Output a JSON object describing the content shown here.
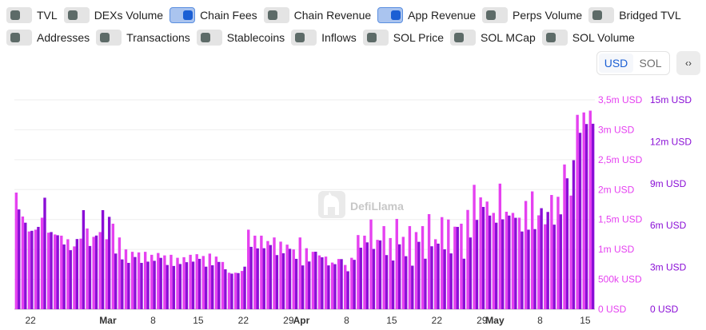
{
  "toggles": [
    [
      {
        "label": "TVL",
        "on": false
      },
      {
        "label": "DEXs Volume",
        "on": false
      },
      {
        "label": "Chain Fees",
        "on": true
      },
      {
        "label": "Chain Revenue",
        "on": false
      },
      {
        "label": "App Revenue",
        "on": true
      },
      {
        "label": "Perps Volume",
        "on": false
      },
      {
        "label": "Bridged TVL",
        "on": false
      }
    ],
    [
      {
        "label": "Addresses",
        "on": false
      },
      {
        "label": "Transactions",
        "on": false
      },
      {
        "label": "Stablecoins",
        "on": false
      },
      {
        "label": "Inflows",
        "on": false
      },
      {
        "label": "SOL Price",
        "on": false
      },
      {
        "label": "SOL MCap",
        "on": false
      },
      {
        "label": "SOL Volume",
        "on": false
      }
    ]
  ],
  "currency": {
    "usd": "USD",
    "sol": "SOL",
    "selected": "USD"
  },
  "embed_label": "‹›",
  "watermark": "DefiLlama",
  "colors": {
    "chain_fees": "#e541f0",
    "app_revenue": "#8a0ed6",
    "toggle_on": "#1b5fd4"
  },
  "chart_data": {
    "type": "bar",
    "x_ticks": [
      "22",
      "Mar",
      "8",
      "15",
      "22",
      "29",
      "Apr",
      "8",
      "15",
      "22",
      "29",
      "May",
      "8",
      "15"
    ],
    "y_left": {
      "ticks": [
        "0 USD",
        "500k USD",
        "1m USD",
        "1,5m USD",
        "2m USD",
        "2,5m USD",
        "3m USD",
        "3,5m USD"
      ],
      "ylim": [
        0,
        3500000
      ]
    },
    "y_right": {
      "ticks": [
        "0 USD",
        "3m USD",
        "6m USD",
        "9m USD",
        "12m USD",
        "15m USD"
      ],
      "ylim": [
        0,
        15000000
      ]
    },
    "grid": true,
    "series": [
      {
        "name": "Chain Fees",
        "axis": "left",
        "values": [
          1950000,
          1550000,
          1300000,
          1330000,
          1530000,
          1280000,
          1250000,
          1230000,
          1170000,
          1050000,
          1180000,
          1350000,
          1210000,
          1290000,
          1170000,
          1430000,
          1200000,
          1000000,
          960000,
          950000,
          960000,
          910000,
          940000,
          900000,
          910000,
          860000,
          870000,
          910000,
          920000,
          890000,
          930000,
          880000,
          790000,
          610000,
          610000,
          640000,
          1330000,
          1230000,
          1230000,
          1140000,
          1200000,
          1130000,
          1080000,
          1000000,
          1200000,
          1020000,
          960000,
          900000,
          880000,
          780000,
          840000,
          740000,
          860000,
          1240000,
          1230000,
          1500000,
          1160000,
          1390000,
          1190000,
          1510000,
          1210000,
          1390000,
          1290000,
          1390000,
          1590000,
          1170000,
          1540000,
          1500000,
          1380000,
          1430000,
          1660000,
          2080000,
          1870000,
          1800000,
          1610000,
          2100000,
          1630000,
          1610000,
          1530000,
          1810000,
          1970000,
          1570000,
          1420000,
          1910000,
          1880000,
          2420000,
          1900000,
          3250000,
          3290000,
          3320000
        ]
      },
      {
        "name": "App Revenue",
        "axis": "right",
        "values": [
          7150000,
          6200000,
          5620000,
          5900000,
          7990000,
          5530000,
          5300000,
          4640000,
          4230000,
          5030000,
          7100000,
          4530000,
          5280000,
          7100000,
          6620000,
          3990000,
          3570000,
          3320000,
          3740000,
          3320000,
          3410000,
          3470000,
          3680000,
          3170000,
          3100000,
          3240000,
          3370000,
          3410000,
          3610000,
          3050000,
          3150000,
          3390000,
          2860000,
          2550000,
          2590000,
          3050000,
          4470000,
          4360000,
          4370000,
          4600000,
          3880000,
          4010000,
          4330000,
          3610000,
          3140000,
          3420000,
          4120000,
          3720000,
          3140000,
          3230000,
          3590000,
          2720000,
          3540000,
          4410000,
          4790000,
          4320000,
          4930000,
          3880000,
          3490000,
          4650000,
          3800000,
          3120000,
          4830000,
          3620000,
          4510000,
          4700000,
          4290000,
          4000000,
          5900000,
          3620000,
          5140000,
          6400000,
          7330000,
          6710000,
          6200000,
          6440000,
          6710000,
          6550000,
          5570000,
          5700000,
          5740000,
          7240000,
          6970000,
          6060000,
          6800000,
          9380000,
          10680000,
          12640000,
          13270000,
          13290000
        ]
      }
    ]
  }
}
